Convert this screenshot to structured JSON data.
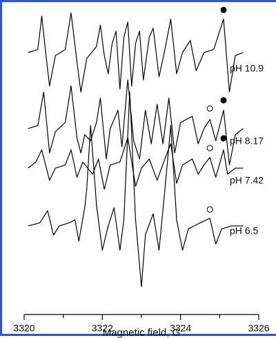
{
  "chart_data": {
    "type": "line",
    "xlabel": "Magnetic field, G",
    "xlim": [
      3320,
      3326
    ],
    "xticks": [
      3320,
      3322,
      3324,
      3326
    ],
    "xminorticks": [
      3321,
      3323,
      3325
    ],
    "ylim": [
      0,
      100
    ],
    "series": [
      {
        "name": "pH 10.9",
        "color": "#000000",
        "x": [
          3320.1,
          3320.35,
          3320.45,
          3320.55,
          3320.65,
          3320.8,
          3321.05,
          3321.2,
          3321.35,
          3321.45,
          3321.6,
          3321.85,
          3321.95,
          3322.05,
          3322.15,
          3322.25,
          3322.35,
          3322.45,
          3322.55,
          3322.65,
          3322.75,
          3322.85,
          3322.95,
          3323.05,
          3323.2,
          3323.3,
          3323.45,
          3323.6,
          3323.75,
          3323.9,
          3324.05,
          3324.25,
          3324.4,
          3324.6,
          3324.85,
          3325.1,
          3325.25,
          3325.4,
          3325.6
        ],
        "values": [
          85,
          86,
          97,
          85,
          74,
          84,
          86,
          98,
          82,
          72,
          83,
          87,
          94,
          84,
          78,
          88,
          92,
          73,
          90,
          95,
          74,
          88,
          92,
          76,
          90,
          93,
          77,
          86,
          96,
          78,
          85,
          89,
          79,
          85,
          86,
          96,
          72,
          84,
          85
        ]
      },
      {
        "name": "pH 8.17",
        "color": "#000000",
        "x": [
          3320.1,
          3320.35,
          3320.5,
          3320.65,
          3320.8,
          3321.05,
          3321.2,
          3321.35,
          3321.45,
          3321.55,
          3321.7,
          3321.85,
          3321.95,
          3322.1,
          3322.2,
          3322.4,
          3322.5,
          3322.65,
          3322.8,
          3322.95,
          3323.1,
          3323.25,
          3323.4,
          3323.55,
          3323.7,
          3323.85,
          3324.0,
          3324.3,
          3324.45,
          3324.6,
          3324.75,
          3324.9,
          3325.1,
          3325.25,
          3325.4,
          3325.6
        ],
        "values": [
          60,
          61,
          72,
          52,
          59,
          62,
          74,
          57,
          52,
          58,
          56,
          62,
          70,
          50,
          60,
          66,
          54,
          76,
          56,
          50,
          66,
          55,
          68,
          55,
          70,
          52,
          62,
          64,
          55,
          60,
          63,
          56,
          66,
          48,
          58,
          60
        ]
      },
      {
        "name": "pH 7.42",
        "color": "#000000",
        "x": [
          3320.1,
          3320.3,
          3320.45,
          3320.65,
          3320.8,
          3321.05,
          3321.2,
          3321.35,
          3321.5,
          3321.75,
          3321.9,
          3322.05,
          3322.2,
          3322.45,
          3322.65,
          3322.85,
          3323.0,
          3323.2,
          3323.4,
          3323.6,
          3323.75,
          3323.9,
          3324.05,
          3324.3,
          3324.45,
          3324.6,
          3324.75,
          3324.9,
          3325.1,
          3325.2,
          3325.4,
          3325.6
        ],
        "values": [
          47,
          49,
          53,
          43,
          47,
          48,
          53,
          44,
          49,
          45,
          50,
          40,
          48,
          49,
          57,
          41,
          47,
          50,
          43,
          50,
          55,
          42,
          48,
          50,
          45,
          48,
          50.5,
          44,
          53,
          45,
          47,
          47
        ]
      },
      {
        "name": "pH 6.5",
        "color": "#000000",
        "x": [
          3320.1,
          3320.4,
          3320.6,
          3320.75,
          3320.9,
          3321.15,
          3321.3,
          3321.4,
          3321.55,
          3321.6,
          3321.7,
          3321.85,
          3322.0,
          3322.15,
          3322.3,
          3322.45,
          3322.55,
          3322.7,
          3322.85,
          3323.0,
          3323.1,
          3323.3,
          3323.45,
          3323.6,
          3323.75,
          3323.9,
          3324.05,
          3324.2,
          3324.5,
          3324.75,
          3324.9,
          3325.05,
          3325.3,
          3325.6
        ],
        "values": [
          28,
          29,
          33,
          25,
          28,
          29,
          30,
          23,
          34,
          40,
          61,
          35,
          20,
          28,
          34,
          20,
          30,
          72,
          30,
          8,
          25,
          32,
          20,
          40,
          61,
          30,
          20,
          27,
          29,
          30.5,
          22,
          27,
          28,
          28
        ]
      }
    ],
    "markers": [
      {
        "x": 3325.1,
        "y": 99,
        "filled": true
      },
      {
        "x": 3324.75,
        "y": 66.6,
        "filled": false
      },
      {
        "x": 3325.1,
        "y": 69.3,
        "filled": true
      },
      {
        "x": 3324.75,
        "y": 53.6,
        "filled": false
      },
      {
        "x": 3325.1,
        "y": 56.8,
        "filled": true
      },
      {
        "x": 3324.75,
        "y": 33.4,
        "filled": false
      }
    ]
  }
}
